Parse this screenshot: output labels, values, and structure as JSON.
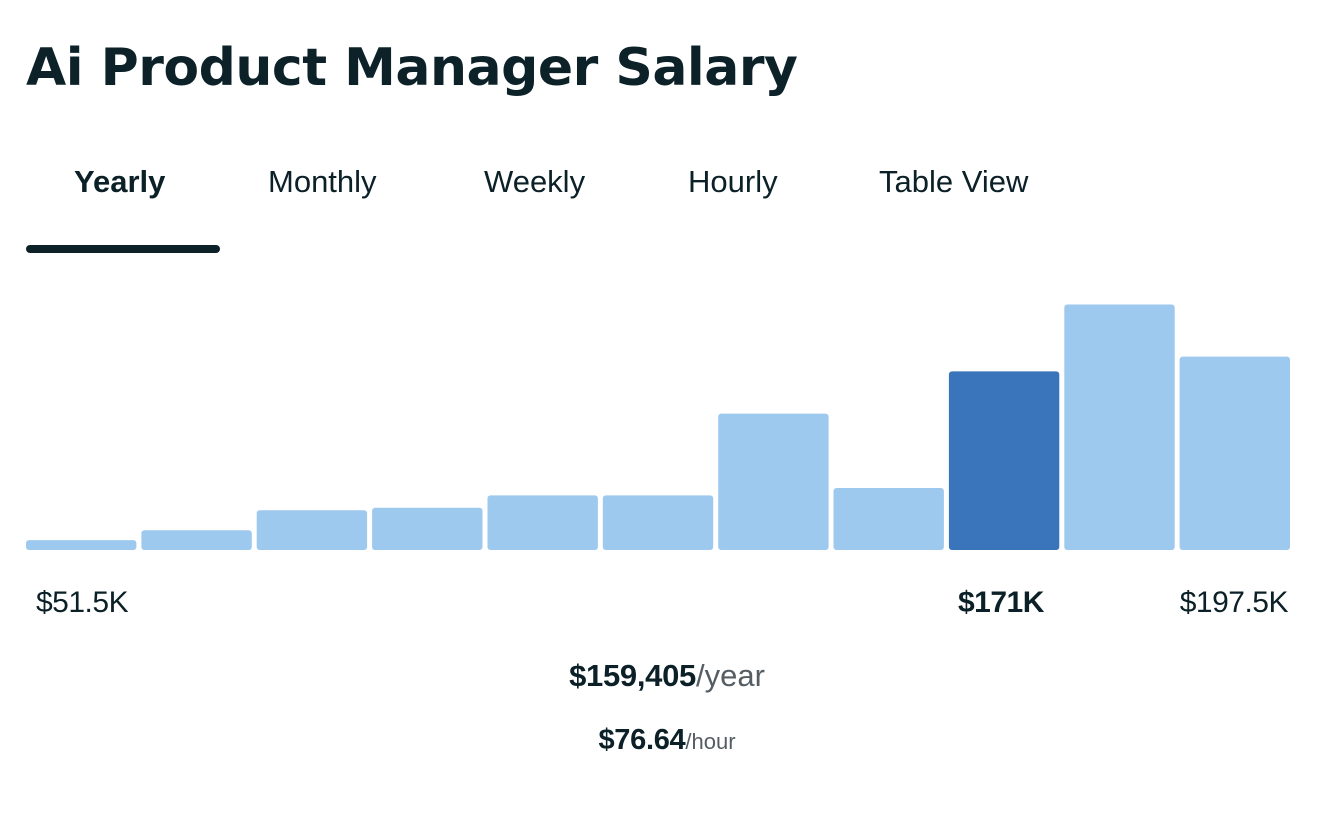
{
  "title": "Ai Product Manager Salary",
  "tabs": [
    {
      "label": "Yearly",
      "active": true
    },
    {
      "label": "Monthly",
      "active": false
    },
    {
      "label": "Weekly",
      "active": false
    },
    {
      "label": "Hourly",
      "active": false
    },
    {
      "label": "Table View",
      "active": false
    }
  ],
  "axis": {
    "min_label": "$51.5K",
    "highlight_label": "$171K",
    "max_label": "$197.5K"
  },
  "summary": {
    "yearly_amount": "$159,405",
    "yearly_unit": "/year",
    "hourly_amount": "$76.64",
    "hourly_unit": "/hour"
  },
  "colors": {
    "bar": "#9ec9ee",
    "bar_highlight": "#3a74bb",
    "text": "#0b2027",
    "muted": "#545d63"
  },
  "chart_data": {
    "type": "bar",
    "title": "",
    "xlabel": "",
    "ylabel": "",
    "x_range": [
      "$51.5K",
      "$197.5K"
    ],
    "values": [
      4,
      8,
      16,
      17,
      22,
      22,
      55,
      25,
      72,
      99,
      78
    ],
    "highlight_index": 8,
    "ylim": [
      0,
      100
    ]
  }
}
